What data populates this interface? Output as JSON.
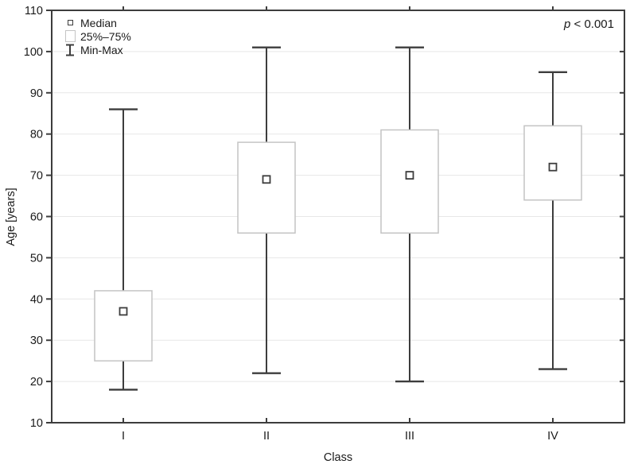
{
  "chart_data": {
    "type": "box",
    "xlabel": "Class",
    "ylabel": "Age [years]",
    "ylim": [
      10,
      110
    ],
    "ytick_step": 10,
    "yticks": [
      10,
      20,
      30,
      40,
      50,
      60,
      70,
      80,
      90,
      100,
      110
    ],
    "categories": [
      "I",
      "II",
      "III",
      "IV"
    ],
    "series": [
      {
        "category": "I",
        "min": 18,
        "q1": 25,
        "median": 37,
        "q3": 42,
        "max": 86
      },
      {
        "category": "II",
        "min": 22,
        "q1": 56,
        "median": 69,
        "q3": 78,
        "max": 101
      },
      {
        "category": "III",
        "min": 20,
        "q1": 56,
        "median": 70,
        "q3": 81,
        "max": 101
      },
      {
        "category": "IV",
        "min": 23,
        "q1": 64,
        "median": 72,
        "q3": 82,
        "max": 95
      }
    ],
    "legend": {
      "position": "top-left",
      "items": [
        {
          "marker": "median-square",
          "label": "Median"
        },
        {
          "marker": "iqr-box",
          "label": "25%–75%"
        },
        {
          "marker": "whisker-ibeam",
          "label": "Min-Max"
        }
      ]
    },
    "annotation": {
      "symbol": "p",
      "rest": " < 0.001"
    },
    "grid": "horizontal",
    "legend_position": "top-left",
    "colors": {
      "frame": "#3d3d3d",
      "whisker": "#3d3d3d",
      "box_border": "#c4c4c4",
      "box_fill": "#ffffff",
      "grid": "#e7e7e7",
      "text": "#1a1a1a",
      "background": "#ffffff"
    }
  }
}
